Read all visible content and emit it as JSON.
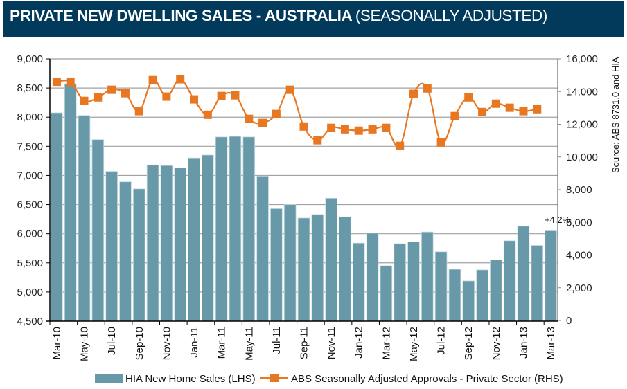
{
  "header": {
    "title_main": "PRIVATE NEW DWELLING SALES -  AUSTRALIA",
    "title_sub": "(SEASONALLY ADJUSTED)"
  },
  "source": "Source: ABS 8731.0 and HIA",
  "annotation": "+4.2%",
  "colors": {
    "header_bg": "#023a5c",
    "bar": "#6899a8",
    "line": "#e87722",
    "grid": "#a0a0a0"
  },
  "chart_data": {
    "type": "bar+line",
    "title": "PRIVATE NEW DWELLING SALES -  AUSTRALIA (SEASONALLY ADJUSTED)",
    "categories": [
      "Mar-10",
      "Apr-10",
      "May-10",
      "Jun-10",
      "Jul-10",
      "Aug-10",
      "Sep-10",
      "Oct-10",
      "Nov-10",
      "Dec-10",
      "Jan-11",
      "Feb-11",
      "Mar-11",
      "Apr-11",
      "May-11",
      "Jun-11",
      "Jul-11",
      "Aug-11",
      "Sep-11",
      "Oct-11",
      "Nov-11",
      "Dec-11",
      "Jan-12",
      "Feb-12",
      "Mar-12",
      "Apr-12",
      "May-12",
      "Jun-12",
      "Jul-12",
      "Aug-12",
      "Sep-12",
      "Oct-12",
      "Nov-12",
      "Dec-12",
      "Jan-13",
      "Feb-13",
      "Mar-13"
    ],
    "x_tick_labels": [
      "Mar-10",
      "May-10",
      "Jul-10",
      "Sep-10",
      "Nov-10",
      "Jan-11",
      "Mar-11",
      "May-11",
      "Jul-11",
      "Sep-11",
      "Nov-11",
      "Jan-12",
      "Mar-12",
      "May-12",
      "Jul-12",
      "Sep-12",
      "Nov-12",
      "Jan-13",
      "Mar-13"
    ],
    "series": [
      {
        "name": "HIA New Home Sales (LHS)",
        "type": "bar",
        "axis": "left",
        "values": [
          8075,
          8570,
          8030,
          7615,
          7070,
          6890,
          6770,
          7180,
          7170,
          7130,
          7300,
          7350,
          7660,
          7670,
          7660,
          6990,
          6430,
          6500,
          6270,
          6330,
          6610,
          6290,
          5840,
          6010,
          5450,
          5830,
          5860,
          6030,
          5690,
          5390,
          5190,
          5380,
          5550,
          5880,
          6130,
          5800,
          6050
        ]
      },
      {
        "name": "ABS Seasonally Adjusted Approvals - Private Sector (RHS)",
        "type": "line",
        "axis": "right",
        "values": [
          14600,
          14580,
          13430,
          13640,
          14110,
          13900,
          12800,
          14700,
          13690,
          14750,
          13520,
          12580,
          13730,
          13770,
          12330,
          12080,
          12630,
          14110,
          11860,
          11020,
          11780,
          11690,
          11610,
          11690,
          11780,
          10680,
          13860,
          14190,
          10890,
          12500,
          13640,
          12750,
          13260,
          13010,
          12800,
          12920,
          null
        ]
      }
    ],
    "left_axis": {
      "label": "",
      "min": 4500,
      "max": 9000,
      "step": 500,
      "tick_labels": [
        "4,500",
        "5,000",
        "5,500",
        "6,000",
        "6,500",
        "7,000",
        "7,500",
        "8,000",
        "8,500",
        "9,000"
      ]
    },
    "right_axis": {
      "label": "",
      "min": 0,
      "max": 16000,
      "step": 2000,
      "tick_labels": [
        "0",
        "2,000",
        "4,000",
        "6,000",
        "8,000",
        "10,000",
        "12,000",
        "14,000",
        "16,000"
      ]
    },
    "grid": true,
    "legend": {
      "position": "bottom",
      "entries": [
        "HIA New Home Sales (LHS)",
        "ABS Seasonally Adjusted Approvals - Private Sector (RHS)"
      ]
    },
    "annotations": [
      {
        "category": "Mar-13",
        "text": "+4.2%"
      }
    ]
  }
}
